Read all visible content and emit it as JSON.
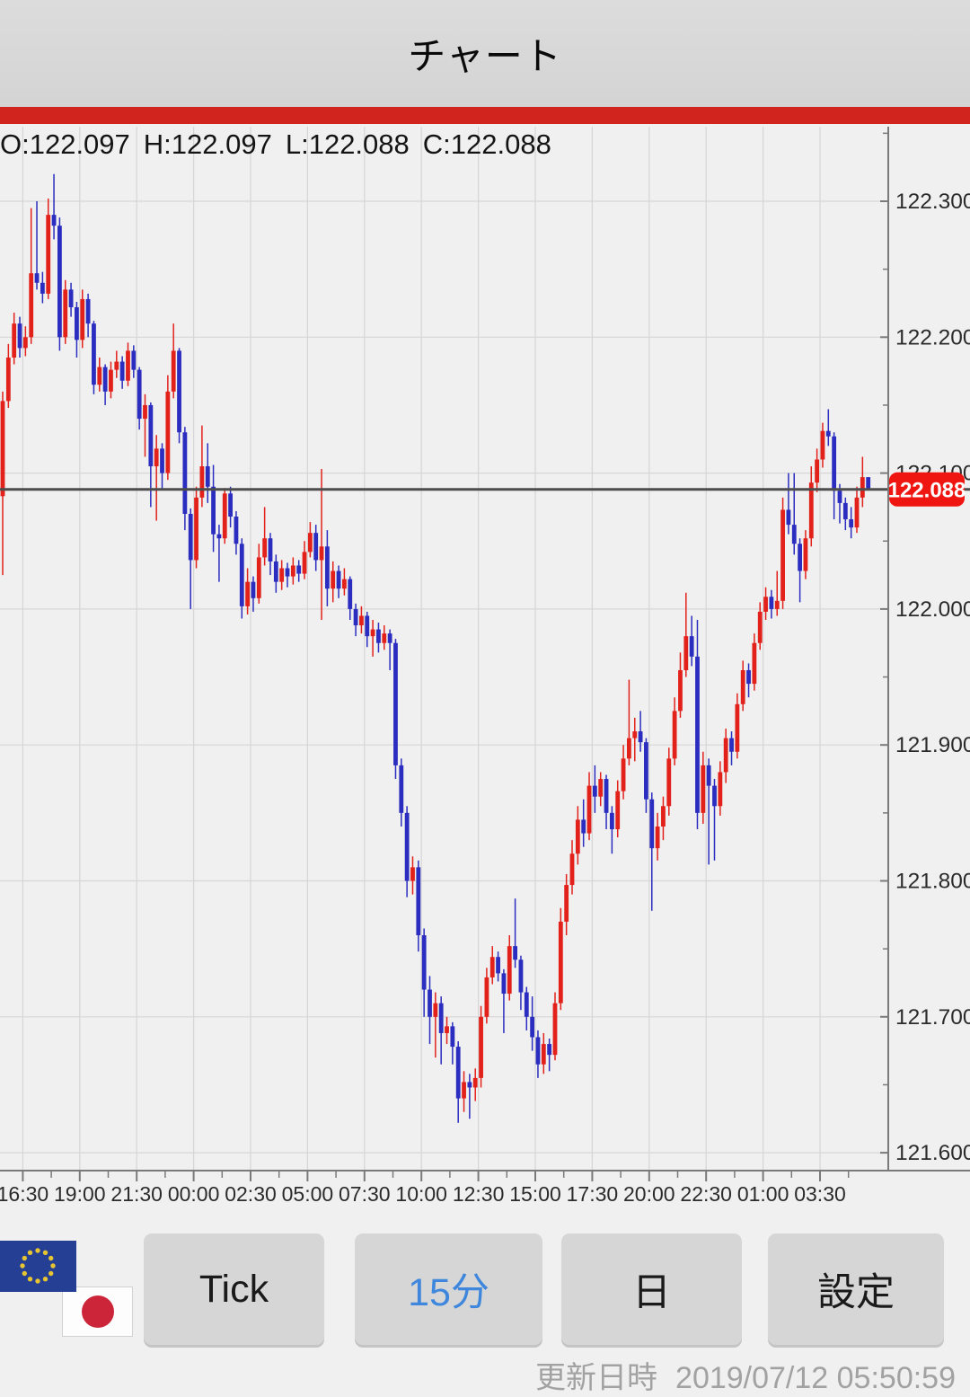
{
  "header": {
    "title": "チャート"
  },
  "ohlc_readout": {
    "open": "O:122.097",
    "high": "H:122.097",
    "low": "L:122.088",
    "close": "C:122.088"
  },
  "chart_data": {
    "type": "candlestick",
    "timeframe": "15分",
    "legend_position": "none",
    "grid": true,
    "ylim": [
      121.58,
      122.36
    ],
    "y_axis_ticks": [
      {
        "value": 122.3,
        "label": "122.300"
      },
      {
        "value": 122.2,
        "label": "122.200"
      },
      {
        "value": 122.1,
        "label": "122.100"
      },
      {
        "value": 122.0,
        "label": "122.000"
      },
      {
        "value": 121.9,
        "label": "121.900"
      },
      {
        "value": 121.8,
        "label": "121.800"
      },
      {
        "value": 121.7,
        "label": "121.700"
      },
      {
        "value": 121.6,
        "label": "121.600"
      }
    ],
    "x_axis_ticks": [
      "16:30",
      "19:00",
      "21:30",
      "00:00",
      "02:30",
      "05:00",
      "07:30",
      "10:00",
      "12:30",
      "15:00",
      "17:30",
      "20:00",
      "22:30",
      "01:00",
      "03:30"
    ],
    "current_price": 122.088,
    "current_price_label": "122.088",
    "colors": {
      "up": "#e3211b",
      "down": "#2a2dbf",
      "price_line": "#4d4d4d",
      "price_badge": "#ef1511",
      "grid": "#d7d5d5",
      "axis": "#7a7a7a"
    },
    "candles": [
      [
        122.083,
        122.16,
        122.025,
        122.153
      ],
      [
        122.153,
        122.195,
        122.148,
        122.185
      ],
      [
        122.185,
        122.218,
        122.18,
        122.21
      ],
      [
        122.21,
        122.215,
        122.185,
        122.192
      ],
      [
        122.192,
        122.208,
        122.186,
        122.2
      ],
      [
        122.2,
        122.295,
        122.195,
        122.247
      ],
      [
        122.247,
        122.3,
        122.235,
        122.24
      ],
      [
        122.24,
        122.248,
        122.225,
        122.232
      ],
      [
        122.232,
        122.302,
        122.228,
        122.29
      ],
      [
        122.29,
        122.32,
        122.272,
        122.282
      ],
      [
        122.282,
        122.288,
        122.19,
        122.2
      ],
      [
        122.2,
        122.242,
        122.195,
        122.235
      ],
      [
        122.235,
        122.24,
        122.215,
        122.222
      ],
      [
        122.222,
        122.226,
        122.185,
        122.198
      ],
      [
        122.198,
        122.235,
        122.192,
        122.228
      ],
      [
        122.228,
        122.232,
        122.2,
        122.21
      ],
      [
        122.21,
        122.212,
        122.158,
        122.165
      ],
      [
        122.165,
        122.185,
        122.16,
        122.178
      ],
      [
        122.178,
        122.18,
        122.15,
        122.16
      ],
      [
        122.16,
        122.182,
        122.155,
        122.176
      ],
      [
        122.176,
        122.19,
        122.17,
        122.182
      ],
      [
        122.182,
        122.186,
        122.162,
        122.168
      ],
      [
        122.168,
        122.196,
        122.164,
        122.19
      ],
      [
        122.19,
        122.194,
        122.17,
        122.176
      ],
      [
        122.176,
        122.178,
        122.132,
        122.14
      ],
      [
        122.14,
        122.158,
        122.112,
        122.15
      ],
      [
        122.15,
        122.152,
        122.075,
        122.105
      ],
      [
        122.105,
        122.128,
        122.065,
        122.118
      ],
      [
        122.118,
        122.122,
        122.088,
        122.1
      ],
      [
        122.1,
        122.172,
        122.095,
        122.16
      ],
      [
        122.16,
        122.21,
        122.155,
        122.19
      ],
      [
        122.19,
        122.192,
        122.122,
        122.13
      ],
      [
        122.13,
        122.134,
        122.058,
        122.07
      ],
      [
        122.07,
        122.074,
        122.0,
        122.036
      ],
      [
        122.036,
        122.09,
        122.03,
        122.082
      ],
      [
        122.082,
        122.135,
        122.075,
        122.105
      ],
      [
        122.105,
        122.122,
        122.078,
        122.09
      ],
      [
        122.09,
        122.106,
        122.042,
        122.055
      ],
      [
        122.055,
        122.062,
        122.02,
        122.052
      ],
      [
        122.052,
        122.089,
        122.048,
        122.085
      ],
      [
        122.085,
        122.09,
        122.06,
        122.068
      ],
      [
        122.068,
        122.072,
        122.04,
        122.048
      ],
      [
        122.048,
        122.052,
        121.993,
        122.002
      ],
      [
        122.002,
        122.03,
        121.996,
        122.02
      ],
      [
        122.02,
        122.024,
        121.998,
        122.008
      ],
      [
        122.008,
        122.048,
        122.004,
        122.038
      ],
      [
        122.038,
        122.075,
        122.032,
        122.052
      ],
      [
        122.052,
        122.056,
        122.025,
        122.035
      ],
      [
        122.035,
        122.04,
        122.012,
        122.02
      ],
      [
        122.02,
        122.036,
        122.014,
        122.03
      ],
      [
        122.03,
        122.034,
        122.016,
        122.024
      ],
      [
        122.024,
        122.038,
        122.018,
        122.032
      ],
      [
        122.032,
        122.036,
        122.02,
        122.026
      ],
      [
        122.026,
        122.05,
        122.022,
        122.042
      ],
      [
        122.042,
        122.064,
        122.038,
        122.056
      ],
      [
        122.056,
        122.062,
        122.028,
        122.036
      ],
      [
        122.036,
        122.103,
        121.992,
        122.046
      ],
      [
        122.046,
        122.058,
        122.002,
        122.015
      ],
      [
        122.015,
        122.035,
        122.005,
        122.028
      ],
      [
        122.028,
        122.032,
        122.008,
        122.015
      ],
      [
        122.015,
        122.03,
        122.01,
        122.022
      ],
      [
        122.022,
        122.024,
        121.992,
        122.0
      ],
      [
        122.0,
        122.004,
        121.98,
        121.988
      ],
      [
        121.988,
        122.002,
        121.982,
        121.995
      ],
      [
        121.995,
        121.998,
        121.972,
        121.98
      ],
      [
        121.98,
        121.992,
        121.965,
        121.985
      ],
      [
        121.985,
        121.99,
        121.968,
        121.975
      ],
      [
        121.975,
        121.988,
        121.97,
        121.982
      ],
      [
        121.982,
        121.985,
        121.955,
        121.975
      ],
      [
        121.975,
        121.978,
        121.875,
        121.885
      ],
      [
        121.885,
        121.89,
        121.84,
        121.85
      ],
      [
        121.85,
        121.855,
        121.788,
        121.8
      ],
      [
        121.8,
        121.818,
        121.79,
        121.81
      ],
      [
        121.81,
        121.815,
        121.748,
        121.76
      ],
      [
        121.76,
        121.765,
        121.7,
        121.72
      ],
      [
        121.72,
        121.73,
        121.68,
        121.7
      ],
      [
        121.7,
        121.718,
        121.67,
        121.71
      ],
      [
        121.71,
        121.715,
        121.665,
        121.688
      ],
      [
        121.688,
        121.7,
        121.68,
        121.693
      ],
      [
        121.693,
        121.696,
        121.665,
        121.678
      ],
      [
        121.678,
        121.682,
        121.622,
        121.64
      ],
      [
        121.64,
        121.66,
        121.63,
        121.652
      ],
      [
        121.652,
        121.658,
        121.625,
        121.648
      ],
      [
        121.648,
        121.662,
        121.638,
        121.655
      ],
      [
        121.655,
        121.708,
        121.648,
        121.7
      ],
      [
        121.7,
        121.736,
        121.695,
        121.729
      ],
      [
        121.729,
        121.752,
        121.724,
        121.744
      ],
      [
        121.744,
        121.748,
        121.726,
        121.732
      ],
      [
        121.732,
        121.735,
        121.688,
        121.717
      ],
      [
        121.717,
        121.76,
        121.712,
        121.752
      ],
      [
        121.752,
        121.787,
        121.736,
        121.742
      ],
      [
        121.742,
        121.745,
        121.705,
        121.718
      ],
      [
        121.718,
        121.722,
        121.69,
        121.7
      ],
      [
        121.7,
        121.715,
        121.675,
        121.685
      ],
      [
        121.685,
        121.69,
        121.655,
        121.665
      ],
      [
        121.665,
        121.688,
        121.658,
        121.68
      ],
      [
        121.68,
        121.684,
        121.66,
        121.672
      ],
      [
        121.672,
        121.718,
        121.668,
        121.71
      ],
      [
        121.71,
        121.78,
        121.705,
        121.77
      ],
      [
        121.77,
        121.805,
        121.76,
        121.797
      ],
      [
        121.797,
        121.83,
        121.79,
        121.82
      ],
      [
        121.82,
        121.855,
        121.812,
        121.845
      ],
      [
        121.845,
        121.86,
        121.825,
        121.835
      ],
      [
        121.835,
        121.88,
        121.83,
        121.87
      ],
      [
        121.87,
        121.885,
        121.85,
        121.862
      ],
      [
        121.862,
        121.88,
        121.855,
        121.875
      ],
      [
        121.875,
        121.878,
        121.838,
        121.85
      ],
      [
        121.85,
        121.855,
        121.82,
        121.838
      ],
      [
        121.838,
        121.874,
        121.832,
        121.866
      ],
      [
        121.866,
        121.9,
        121.86,
        121.89
      ],
      [
        121.89,
        121.948,
        121.885,
        121.905
      ],
      [
        121.905,
        121.92,
        121.888,
        121.91
      ],
      [
        121.91,
        121.925,
        121.895,
        121.902
      ],
      [
        121.902,
        121.905,
        121.85,
        121.86
      ],
      [
        121.86,
        121.865,
        121.778,
        121.824
      ],
      [
        121.824,
        121.85,
        121.815,
        121.84
      ],
      [
        121.84,
        121.862,
        121.83,
        121.855
      ],
      [
        121.855,
        121.898,
        121.848,
        121.89
      ],
      [
        121.89,
        121.935,
        121.885,
        121.925
      ],
      [
        121.925,
        121.968,
        121.92,
        121.955
      ],
      [
        121.955,
        122.012,
        121.95,
        121.98
      ],
      [
        121.98,
        121.995,
        121.958,
        121.965
      ],
      [
        121.965,
        121.992,
        121.838,
        121.85
      ],
      [
        121.85,
        121.895,
        121.842,
        121.885
      ],
      [
        121.885,
        121.89,
        121.812,
        121.87
      ],
      [
        121.87,
        121.875,
        121.815,
        121.855
      ],
      [
        121.855,
        121.888,
        121.848,
        121.88
      ],
      [
        121.88,
        121.912,
        121.872,
        121.905
      ],
      [
        121.905,
        121.91,
        121.885,
        121.895
      ],
      [
        121.895,
        121.938,
        121.89,
        121.93
      ],
      [
        121.93,
        121.962,
        121.925,
        121.955
      ],
      [
        121.955,
        121.96,
        121.935,
        121.945
      ],
      [
        121.945,
        121.982,
        121.94,
        121.975
      ],
      [
        121.975,
        122.005,
        121.97,
        121.998
      ],
      [
        121.998,
        122.016,
        121.992,
        122.009
      ],
      [
        122.009,
        122.014,
        121.993,
        122.0
      ],
      [
        122.0,
        122.028,
        121.995,
        122.006
      ],
      [
        122.006,
        122.082,
        122.0,
        122.073
      ],
      [
        122.073,
        122.1,
        122.055,
        122.062
      ],
      [
        122.062,
        122.1,
        122.04,
        122.048
      ],
      [
        122.048,
        122.052,
        122.005,
        122.028
      ],
      [
        122.028,
        122.058,
        122.022,
        122.052
      ],
      [
        122.052,
        122.105,
        122.046,
        122.093
      ],
      [
        122.093,
        122.118,
        122.086,
        122.11
      ],
      [
        122.11,
        122.137,
        122.104,
        122.131
      ],
      [
        122.131,
        122.147,
        122.12,
        122.127
      ],
      [
        122.127,
        122.13,
        122.066,
        122.087
      ],
      [
        122.087,
        122.092,
        122.063,
        122.078
      ],
      [
        122.078,
        122.082,
        122.058,
        122.066
      ],
      [
        122.066,
        122.075,
        122.052,
        122.06
      ],
      [
        122.06,
        122.09,
        122.056,
        122.082
      ],
      [
        122.082,
        122.112,
        122.075,
        122.097
      ],
      [
        122.097,
        122.097,
        122.088,
        122.088
      ]
    ]
  },
  "toolbar": {
    "buttons": [
      {
        "label": "Tick",
        "active": false
      },
      {
        "label": "15分",
        "active": true
      },
      {
        "label": "日",
        "active": false
      },
      {
        "label": "設定",
        "active": false
      }
    ]
  },
  "icons": {
    "pair_flags": [
      "eu-flag",
      "japan-flag"
    ]
  },
  "status": {
    "label": "更新日時",
    "updated_at": "2019/07/12 05:50:59"
  }
}
